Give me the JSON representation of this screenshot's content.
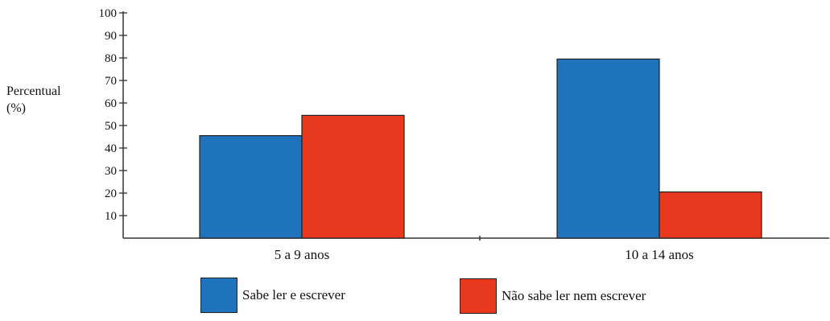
{
  "chart_data": {
    "type": "bar",
    "title": "",
    "ylabel_line1": "Percentual",
    "ylabel_line2": "(%)",
    "xlabel": "",
    "ylim": [
      0,
      100
    ],
    "yticks": [
      10,
      20,
      30,
      40,
      50,
      60,
      70,
      80,
      90,
      100
    ],
    "categories": [
      "5 a 9 anos",
      "10 a 14 anos"
    ],
    "series": [
      {
        "name": "Sabe ler e escrever",
        "values": [
          45.5,
          79.5
        ],
        "color": "#1f73bd"
      },
      {
        "name": "Não sabe ler nem escrever",
        "values": [
          54.5,
          20.5
        ],
        "color": "#e8391e"
      }
    ],
    "legend_position": "bottom",
    "grid": false
  }
}
